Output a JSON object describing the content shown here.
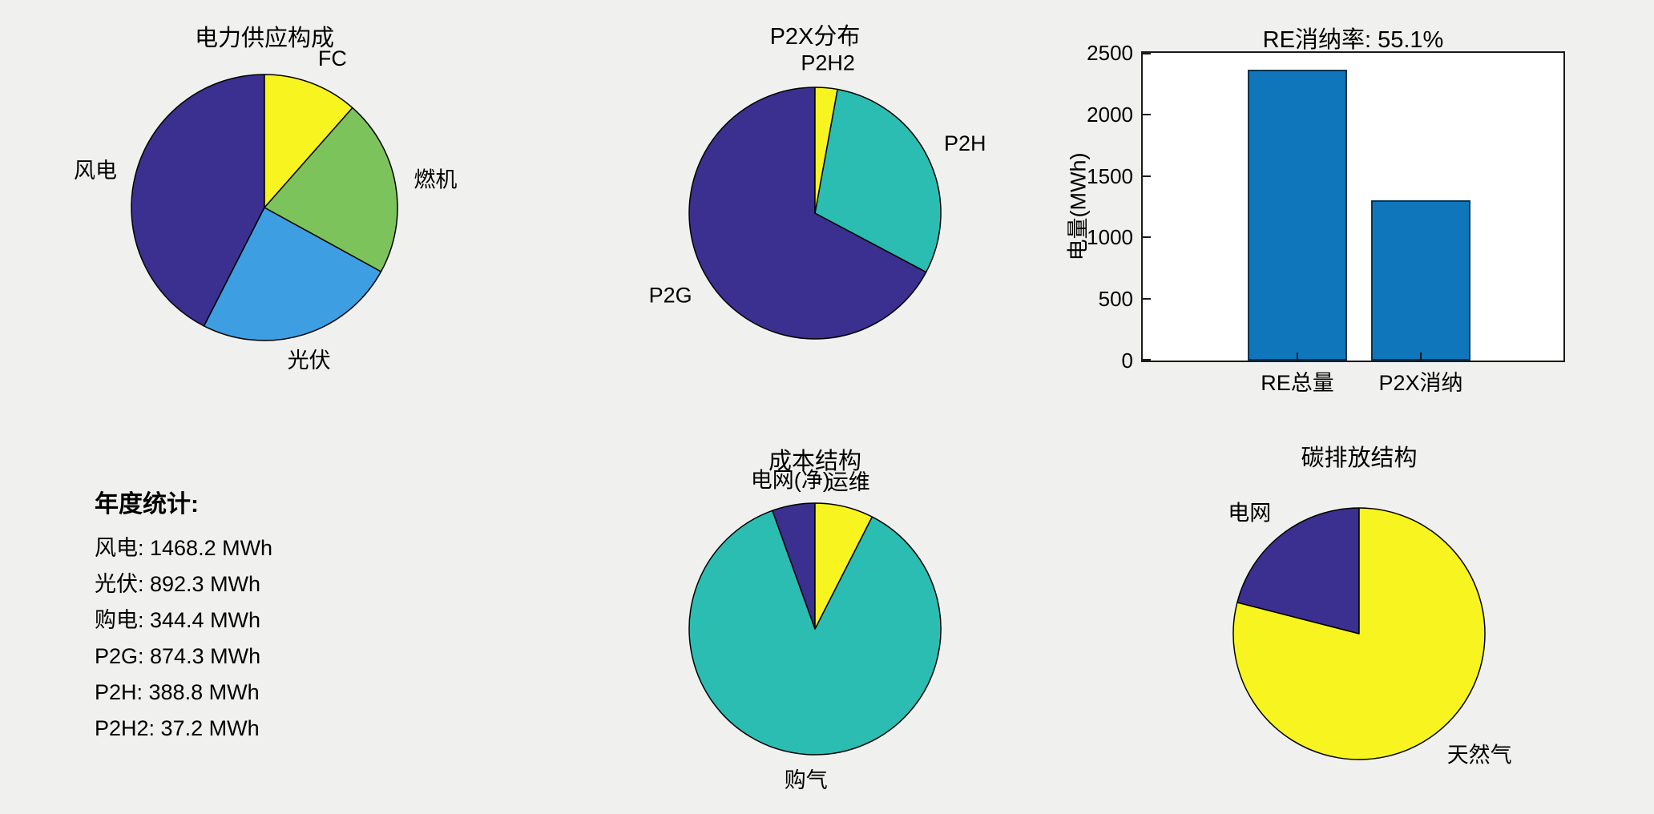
{
  "canvas": {
    "background": "#F0F0EE",
    "plot_background": "#FFFFFF",
    "axis_color": "#1a1a1a"
  },
  "chart_data": [
    {
      "id": "power-supply",
      "type": "pie",
      "title": "电力供应构成",
      "unit": "percent",
      "slices": [
        {
          "label": "风电",
          "value": 42.5,
          "color": "#3B2F90"
        },
        {
          "label": "光伏",
          "value": 24.5,
          "color": "#3E9EE2"
        },
        {
          "label": "燃机",
          "value": 21.5,
          "color": "#7DC35B"
        },
        {
          "label": "FC",
          "value": 11.5,
          "color": "#F8F41F"
        }
      ]
    },
    {
      "id": "p2x-distribution",
      "type": "pie",
      "title": "P2X分布",
      "unit": "MWh",
      "slices": [
        {
          "label": "P2G",
          "value": 874.3,
          "color": "#3B2F90"
        },
        {
          "label": "P2H",
          "value": 388.8,
          "color": "#2BBDB2"
        },
        {
          "label": "P2H2",
          "value": 37.2,
          "color": "#F8F41F"
        }
      ]
    },
    {
      "id": "re-absorption",
      "type": "bar",
      "title": "RE消纳率: 55.1%",
      "ylabel": "电量(MWh)",
      "categories": [
        "RE总量",
        "P2X消纳"
      ],
      "values": [
        2360.5,
        1300.3
      ],
      "ylim": [
        0,
        2500
      ],
      "yticks": [
        0,
        500,
        1000,
        1500,
        2000,
        2500
      ],
      "bar_color": "#0F76BC"
    },
    {
      "id": "cost-structure",
      "type": "pie",
      "title": "成本结构",
      "unit": "percent",
      "slices": [
        {
          "label": "电网(净)",
          "value": 5.5,
          "color": "#3B2F90"
        },
        {
          "label": "购气",
          "value": 87.0,
          "color": "#2BBDB2"
        },
        {
          "label": "运维",
          "value": 7.5,
          "color": "#F8F41F"
        }
      ]
    },
    {
      "id": "carbon-structure",
      "type": "pie",
      "title": "碳排放结构",
      "unit": "percent",
      "slices": [
        {
          "label": "电网",
          "value": 21,
          "color": "#3B2F90"
        },
        {
          "label": "天然气",
          "value": 79,
          "color": "#F8F41F"
        }
      ]
    }
  ],
  "stats": {
    "title": "年度统计:",
    "lines": [
      "风电: 1468.2 MWh",
      "光伏: 892.3 MWh",
      "购电: 344.4 MWh",
      "P2G: 874.3 MWh",
      "P2H: 388.8 MWh",
      "P2H2: 37.2 MWh"
    ]
  }
}
